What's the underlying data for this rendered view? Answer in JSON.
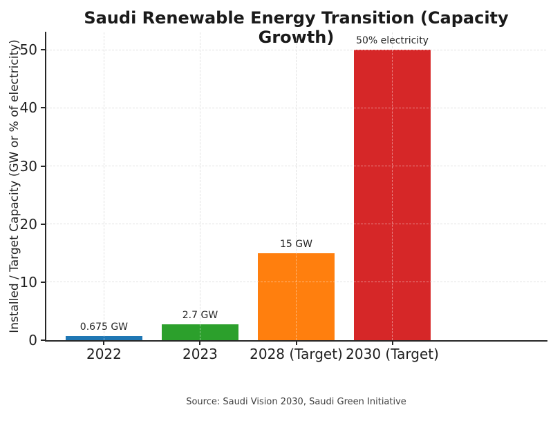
{
  "title": "Saudi Renewable Energy Transition (Capacity Growth)",
  "source_note": "Source: Saudi Vision 2030, Saudi Green Initiative",
  "chart_data": {
    "type": "bar",
    "title": "Saudi Renewable Energy Transition (Capacity Growth)",
    "xlabel": "",
    "ylabel": "Installed / Target Capacity (GW or % of electricity)",
    "categories": [
      "2022",
      "2023",
      "2028 (Target)",
      "2030 (Target)"
    ],
    "values": [
      0.675,
      2.7,
      15,
      50
    ],
    "bar_labels": [
      "0.675 GW",
      "2.7 GW",
      "15 GW",
      "50% electricity"
    ],
    "bar_colors": [
      "#1f77b4",
      "#2ca02c",
      "#ff7f0e",
      "#d62728"
    ],
    "yticks": [
      0,
      10,
      20,
      30,
      40,
      50
    ],
    "ylim": [
      0,
      53
    ],
    "grid": "dashed, both axes, drawn over bars",
    "legend": "none",
    "source_note": "Source: Saudi Vision 2030, Saudi Green Initiative"
  },
  "colors": {
    "background": "#ffffff",
    "spine": "#262626",
    "gridline": "#c9c9c9",
    "title_text": "#1a1a1a",
    "tick_text": "#1f1f1f",
    "source_text": "#3d3d3d"
  }
}
